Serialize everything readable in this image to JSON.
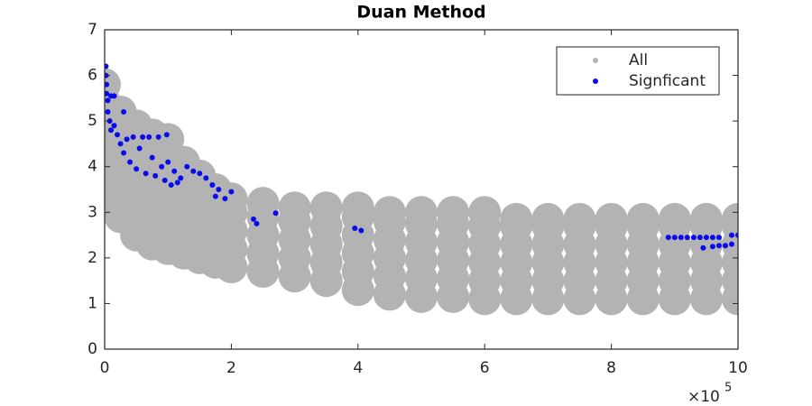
{
  "chart_data": {
    "type": "scatter",
    "title": "Duan Method",
    "x_multiplier": {
      "base": "×10",
      "exponent": "5"
    },
    "xlim": [
      0,
      10
    ],
    "xticks": [
      0,
      2,
      4,
      6,
      8,
      10
    ],
    "ylim": [
      0,
      7
    ],
    "yticks": [
      0,
      1,
      2,
      3,
      4,
      5,
      6,
      7
    ],
    "legend": "upper right",
    "series": [
      {
        "name": "All",
        "color": "#b3b3b3",
        "x": [
          0,
          0,
          0,
          0,
          0,
          0,
          0,
          0.25,
          0.25,
          0.25,
          0.25,
          0.25,
          0.25,
          0.25,
          0.5,
          0.5,
          0.5,
          0.5,
          0.5,
          0.5,
          0.5,
          0.75,
          0.75,
          0.75,
          0.75,
          0.75,
          0.75,
          0.75,
          1,
          1,
          1,
          1,
          1,
          1,
          1,
          1.25,
          1.25,
          1.25,
          1.25,
          1.25,
          1.25,
          1.5,
          1.5,
          1.5,
          1.5,
          1.5,
          1.5,
          1.75,
          1.75,
          1.75,
          1.75,
          1.75,
          2,
          2,
          2,
          2,
          2,
          2.5,
          2.5,
          2.5,
          2.5,
          2.5,
          3,
          3,
          3,
          3,
          3,
          3.5,
          3.5,
          3.5,
          3.5,
          3.5,
          4,
          4,
          4,
          4,
          4,
          4,
          4.5,
          4.5,
          4.5,
          4.5,
          4.5,
          4.5,
          5,
          5,
          5,
          5,
          5,
          5,
          5.5,
          5.5,
          5.5,
          5.5,
          5.5,
          5.5,
          6,
          6,
          6,
          6,
          6,
          6,
          6.5,
          6.5,
          6.5,
          6.5,
          6.5,
          6.5,
          7,
          7,
          7,
          7,
          7,
          7,
          7.5,
          7.5,
          7.5,
          7.5,
          7.5,
          7.5,
          8,
          8,
          8,
          8,
          8,
          8,
          8.5,
          8.5,
          8.5,
          8.5,
          8.5,
          8.5,
          9,
          9,
          9,
          9,
          9,
          9,
          9.5,
          9.5,
          9.5,
          9.5,
          9.5,
          9.5,
          10,
          10,
          10,
          10,
          10,
          10
        ],
        "values": [
          3.4,
          3.8,
          4.2,
          4.6,
          5.0,
          5.4,
          5.8,
          2.9,
          3.3,
          3.7,
          4.1,
          4.5,
          4.9,
          5.2,
          2.5,
          2.9,
          3.3,
          3.7,
          4.1,
          4.5,
          4.9,
          2.3,
          2.7,
          3.1,
          3.5,
          3.9,
          4.3,
          4.7,
          2.2,
          2.6,
          3.0,
          3.4,
          3.8,
          4.2,
          4.6,
          2.1,
          2.5,
          2.9,
          3.3,
          3.7,
          4.1,
          2.0,
          2.4,
          2.8,
          3.2,
          3.6,
          3.8,
          1.9,
          2.3,
          2.7,
          3.1,
          3.5,
          1.8,
          2.2,
          2.6,
          3.0,
          3.3,
          1.7,
          2.1,
          2.5,
          2.9,
          3.2,
          1.6,
          2.0,
          2.4,
          2.8,
          3.1,
          1.5,
          1.9,
          2.3,
          2.7,
          3.1,
          1.3,
          1.7,
          2.1,
          2.5,
          2.9,
          3.1,
          1.2,
          1.6,
          2.0,
          2.4,
          2.8,
          3.0,
          1.15,
          1.55,
          1.95,
          2.35,
          2.75,
          3.0,
          1.15,
          1.55,
          1.95,
          2.35,
          2.75,
          3.0,
          1.1,
          1.5,
          1.9,
          2.3,
          2.7,
          3.0,
          1.1,
          1.5,
          1.9,
          2.3,
          2.7,
          2.85,
          1.1,
          1.5,
          1.9,
          2.3,
          2.7,
          2.85,
          1.1,
          1.5,
          1.9,
          2.3,
          2.7,
          2.85,
          1.1,
          1.5,
          1.9,
          2.3,
          2.7,
          2.85,
          1.1,
          1.5,
          1.9,
          2.3,
          2.7,
          2.85,
          1.1,
          1.5,
          1.9,
          2.3,
          2.7,
          2.85,
          1.1,
          1.5,
          1.9,
          2.3,
          2.7,
          2.85,
          1.1,
          1.5,
          1.9,
          2.3,
          2.7,
          2.85
        ]
      },
      {
        "name": "Signficant",
        "color": "#0a0aef",
        "x": [
          0.02,
          0.02,
          0.03,
          0.03,
          0.05,
          0.05,
          0.08,
          0.1,
          0.15,
          0.1,
          0.15,
          0.2,
          0.25,
          0.3,
          0.3,
          0.35,
          0.4,
          0.45,
          0.5,
          0.55,
          0.6,
          0.65,
          0.7,
          0.75,
          0.8,
          0.85,
          0.9,
          0.95,
          0.98,
          1.0,
          1.05,
          1.1,
          1.15,
          1.2,
          1.3,
          1.4,
          1.5,
          1.6,
          1.7,
          1.75,
          1.8,
          1.9,
          2.0,
          2.35,
          2.4,
          2.7,
          3.95,
          4.05,
          8.9,
          9.0,
          9.1,
          9.2,
          9.3,
          9.4,
          9.5,
          9.6,
          9.7,
          9.9,
          10.0,
          9.6,
          9.7,
          9.8,
          9.9,
          9.45
        ],
        "values": [
          6.2,
          6.0,
          5.8,
          5.6,
          5.45,
          5.2,
          5.0,
          5.55,
          5.55,
          4.8,
          4.9,
          4.7,
          4.5,
          5.2,
          4.3,
          4.6,
          4.1,
          4.65,
          3.95,
          4.4,
          4.65,
          3.85,
          4.65,
          4.2,
          3.8,
          4.65,
          4.0,
          3.7,
          4.7,
          4.1,
          3.6,
          3.9,
          3.65,
          3.75,
          4.0,
          3.9,
          3.85,
          3.75,
          3.6,
          3.35,
          3.5,
          3.3,
          3.45,
          2.85,
          2.75,
          2.98,
          2.65,
          2.6,
          2.45,
          2.45,
          2.45,
          2.45,
          2.45,
          2.45,
          2.45,
          2.45,
          2.45,
          2.5,
          2.5,
          2.25,
          2.27,
          2.27,
          2.3,
          2.22
        ]
      }
    ]
  }
}
